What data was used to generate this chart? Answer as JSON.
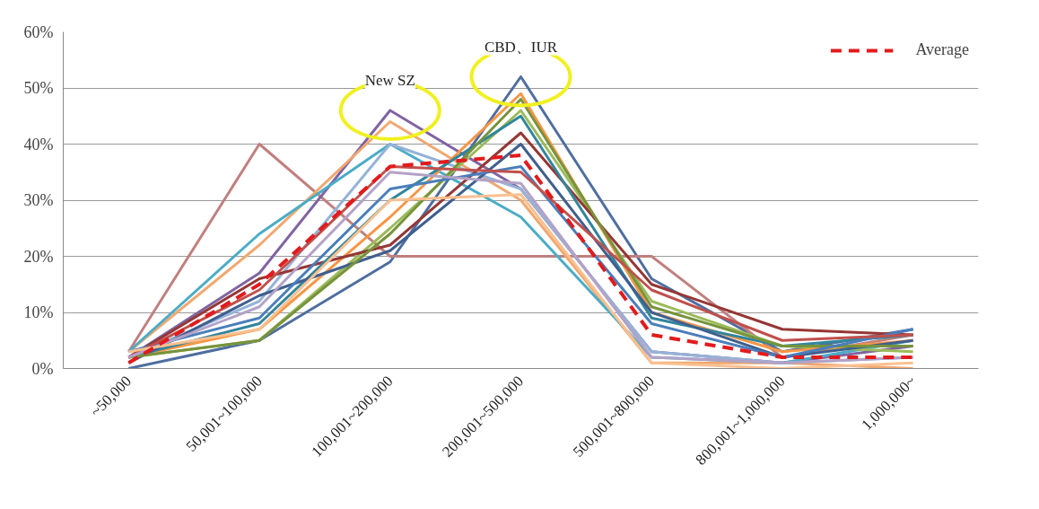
{
  "chart_data": {
    "type": "line",
    "categories": [
      "~50,000",
      "50,001~100,000",
      "100,001~200,000",
      "200,001~500,000",
      "500,001~800,000",
      "800,001~1,000,000",
      "1,000,000~"
    ],
    "ylim": [
      0,
      60
    ],
    "yticks": [
      {
        "value": 0,
        "label": "0%"
      },
      {
        "value": 10,
        "label": "10%"
      },
      {
        "value": 20,
        "label": "20%"
      },
      {
        "value": 30,
        "label": "30%"
      },
      {
        "value": 40,
        "label": "40%"
      },
      {
        "value": 50,
        "label": "50%"
      },
      {
        "value": 60,
        "label": "60%"
      }
    ],
    "grid": "y",
    "legend": "top right",
    "marker": "none",
    "line_style": "solid",
    "annotations": [
      {
        "text": "New SZ",
        "x": "100,001~200,000",
        "y": 46
      },
      {
        "text": "CBD、IUR",
        "x": "200,001~500,000",
        "y": 52
      }
    ],
    "series": [
      {
        "color": "#4f6ea0",
        "values": [
          0,
          5,
          19,
          52,
          16,
          3,
          7
        ]
      },
      {
        "color": "#c0807f",
        "values": [
          3,
          40,
          20,
          20,
          20,
          2,
          6
        ]
      },
      {
        "color": "#8064a2",
        "values": [
          2,
          17,
          46,
          32,
          3,
          1,
          4
        ]
      },
      {
        "color": "#f0a870",
        "values": [
          3,
          22,
          44,
          30,
          1,
          1,
          0
        ]
      },
      {
        "color": "#4bacc6",
        "values": [
          3,
          24,
          40,
          27,
          2,
          1,
          5
        ]
      },
      {
        "color": "#95b3d7",
        "values": [
          2,
          12,
          40,
          32,
          3,
          1,
          2
        ]
      },
      {
        "color": "#9bbb59",
        "values": [
          2,
          5,
          25,
          46,
          12,
          4,
          3
        ]
      },
      {
        "color": "#f79646",
        "values": [
          2,
          7,
          27,
          49,
          10,
          3,
          5
        ]
      },
      {
        "color": "#953735",
        "values": [
          2,
          16,
          22,
          42,
          15,
          7,
          6
        ]
      },
      {
        "color": "#31859c",
        "values": [
          2,
          8,
          30,
          45,
          9,
          4,
          6
        ]
      },
      {
        "color": "#3f5f8f",
        "values": [
          1,
          13,
          21,
          40,
          10,
          2,
          5
        ]
      },
      {
        "color": "#77933c",
        "values": [
          2,
          5,
          24,
          48,
          11,
          4,
          4
        ]
      },
      {
        "color": "#4a7ebb",
        "values": [
          3,
          9,
          32,
          36,
          8,
          2,
          7
        ]
      },
      {
        "color": "#c0504d",
        "values": [
          2,
          14,
          36,
          35,
          14,
          5,
          6
        ]
      },
      {
        "color": "#b3a2c7",
        "values": [
          2,
          11,
          35,
          33,
          2,
          1,
          2
        ]
      },
      {
        "color": "#fac090",
        "values": [
          3,
          7,
          30,
          31,
          1,
          0,
          1
        ]
      },
      {
        "name": "Average",
        "color": "#e31a1c",
        "line_style": "dashed",
        "values": [
          1,
          15,
          36,
          38,
          6,
          2,
          2
        ]
      }
    ]
  }
}
